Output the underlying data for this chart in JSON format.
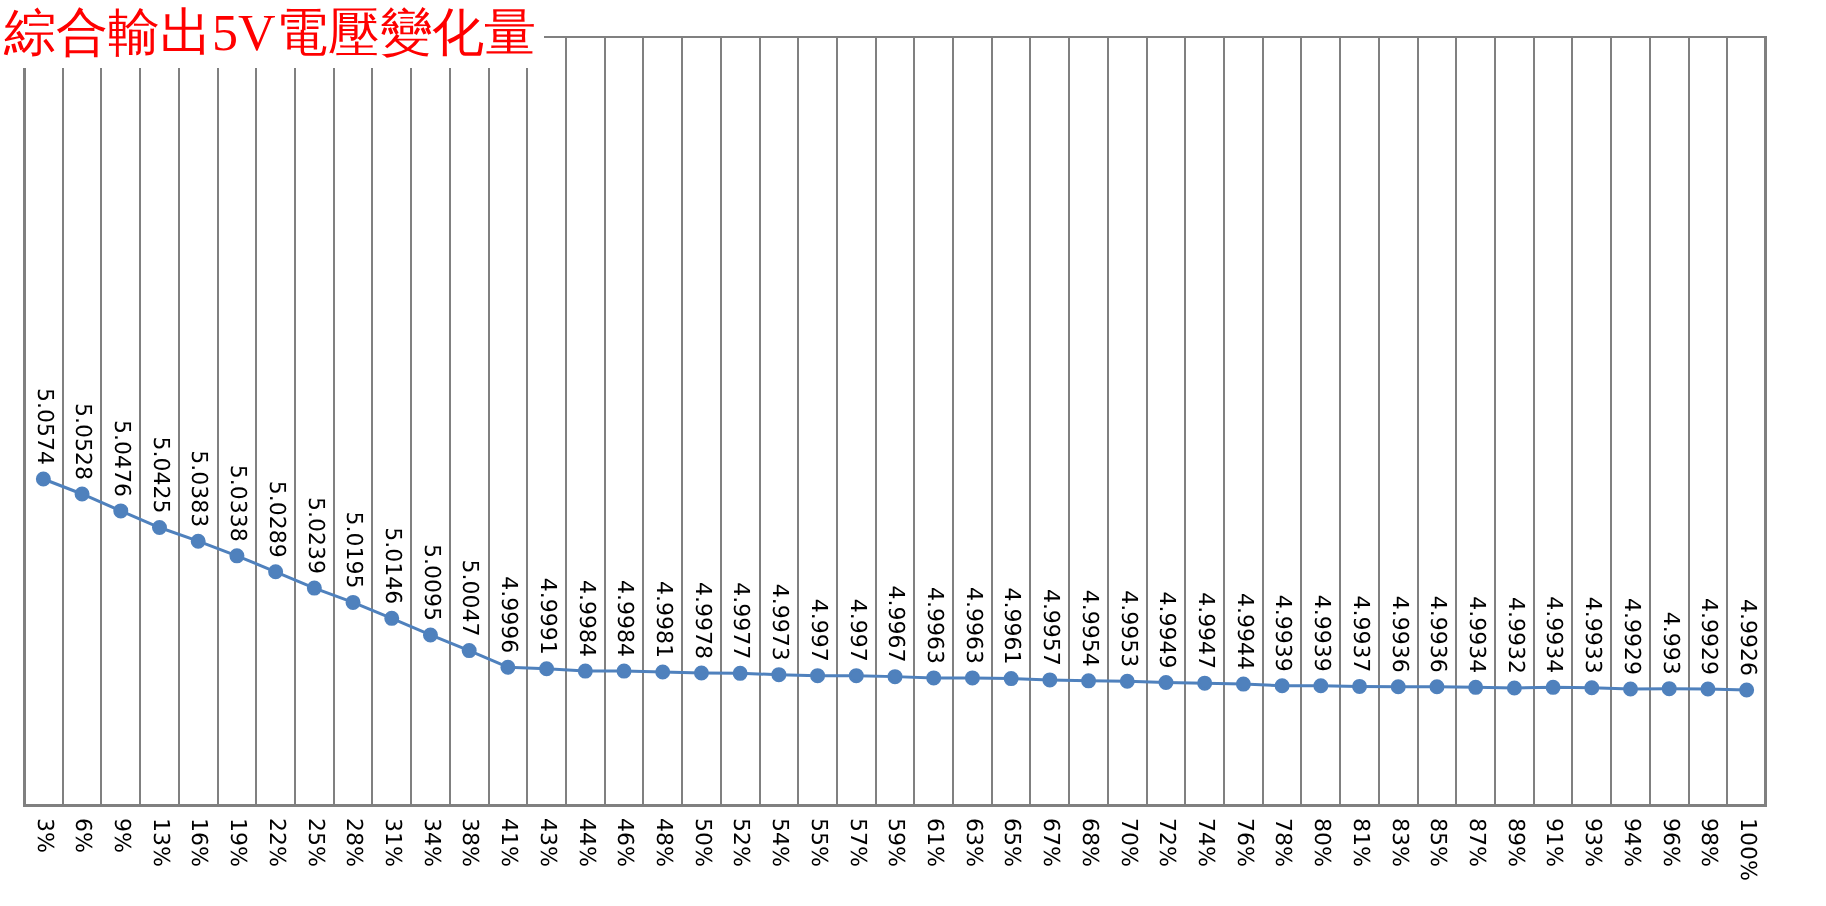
{
  "chart_data": {
    "type": "line",
    "title": "綜合輸出5V電壓變化量",
    "categories": [
      "3%",
      "6%",
      "9%",
      "13%",
      "16%",
      "19%",
      "22%",
      "25%",
      "28%",
      "31%",
      "34%",
      "38%",
      "41%",
      "43%",
      "44%",
      "46%",
      "48%",
      "50%",
      "52%",
      "54%",
      "55%",
      "57%",
      "59%",
      "61%",
      "63%",
      "65%",
      "67%",
      "68%",
      "70%",
      "72%",
      "74%",
      "76%",
      "78%",
      "80%",
      "81%",
      "83%",
      "85%",
      "87%",
      "89%",
      "91%",
      "93%",
      "94%",
      "96%",
      "98%",
      "100%"
    ],
    "series": [
      {
        "color": "#4f81bd",
        "values": [
          5.0574,
          5.0528,
          5.0476,
          5.0425,
          5.0383,
          5.0338,
          5.0289,
          5.0239,
          5.0195,
          5.0146,
          5.0095,
          5.0047,
          4.9996,
          4.9991,
          4.9984,
          4.9984,
          4.9981,
          4.9978,
          4.9977,
          4.9973,
          4.997,
          4.997,
          4.9967,
          4.9963,
          4.9963,
          4.9961,
          4.9957,
          4.9954,
          4.9953,
          4.9949,
          4.9947,
          4.9944,
          4.9939,
          4.9939,
          4.9937,
          4.9936,
          4.9936,
          4.9934,
          4.9932,
          4.9934,
          4.9933,
          4.9929,
          4.993,
          4.9929,
          4.9926
        ]
      }
    ],
    "data_labels": true,
    "grid": "x",
    "legend": false,
    "marker": "circle",
    "line_style": "solid"
  }
}
